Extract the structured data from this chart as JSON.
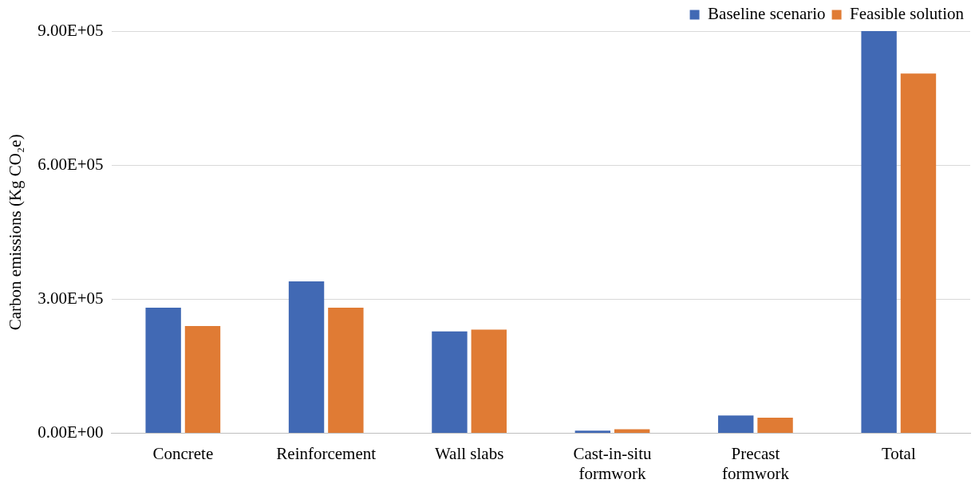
{
  "chart_data": {
    "type": "bar",
    "ylabel": "Carbon emissions (Kg CO₂e)",
    "categories": [
      "Concrete",
      "Reinforcement",
      "Wall slabs",
      "Cast-in-situ formwork",
      "Precast formwork",
      "Total"
    ],
    "series": [
      {
        "name": "Baseline scenario",
        "color": "#4169b4",
        "values": [
          281000,
          340000,
          228000,
          6000,
          40000,
          900000
        ]
      },
      {
        "name": "Feasible solution",
        "color": "#e07b34",
        "values": [
          240000,
          281000,
          232000,
          9000,
          35000,
          805000
        ]
      }
    ],
    "ylim": [
      0,
      900000
    ],
    "yticks": [
      {
        "value": 0,
        "label": "0.00E+00"
      },
      {
        "value": 300000,
        "label": "3.00E+05"
      },
      {
        "value": 600000,
        "label": "6.00E+05"
      },
      {
        "value": 900000,
        "label": "9.00E+05"
      }
    ],
    "grid": "y",
    "legend": "top right"
  }
}
